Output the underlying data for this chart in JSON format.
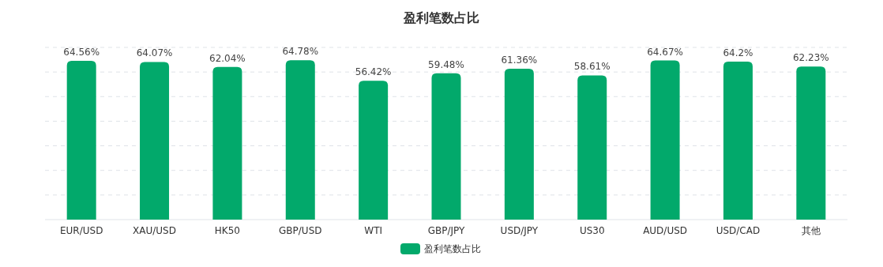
{
  "chart_data": {
    "type": "bar",
    "title": "盈利笔数占比",
    "categories": [
      "EUR/USD",
      "XAU/USD",
      "HK50",
      "GBP/USD",
      "WTI",
      "GBP/JPY",
      "USD/JPY",
      "US30",
      "AUD/USD",
      "USD/CAD",
      "其他"
    ],
    "series": [
      {
        "name": "盈利笔数占比",
        "color": "#02a96b",
        "values": [
          64.56,
          64.07,
          62.04,
          64.78,
          56.42,
          59.48,
          61.36,
          58.61,
          64.67,
          64.2,
          62.23
        ],
        "value_labels": [
          "64.56%",
          "64.07%",
          "62.04%",
          "64.78%",
          "56.42%",
          "59.48%",
          "61.36%",
          "58.61%",
          "64.67%",
          "64.2%",
          "62.23%"
        ]
      }
    ],
    "ylim": [
      0,
      70
    ],
    "yticks": [
      {
        "value": 0,
        "label": null
      },
      {
        "value": 10,
        "label": null
      },
      {
        "value": 20,
        "label": null
      },
      {
        "value": 30,
        "label": null
      },
      {
        "value": 40,
        "label": null
      },
      {
        "value": 50,
        "label": null
      },
      {
        "value": 60,
        "label": null
      },
      {
        "value": 70,
        "label": null
      }
    ],
    "grid": "y",
    "legend": "bottom",
    "tick_labels": "x"
  }
}
